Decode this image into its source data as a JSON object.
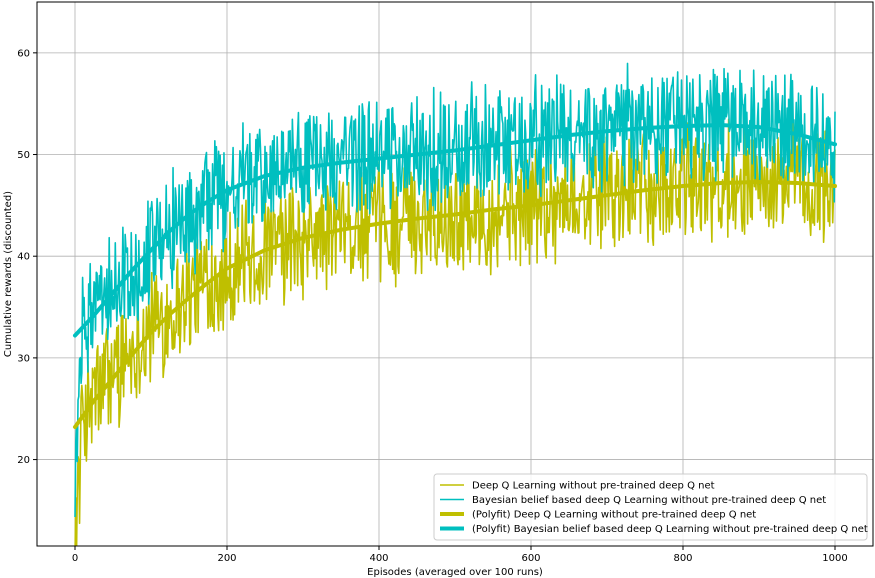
{
  "chart_data": {
    "type": "line",
    "title": "",
    "xlabel": "Episodes (averaged over 100 runs)",
    "ylabel": "Cumulative rewards (discounted)",
    "xlim": [
      -50,
      1050
    ],
    "ylim": [
      11.5,
      65
    ],
    "x_ticks": [
      0,
      200,
      400,
      600,
      800,
      1000
    ],
    "y_ticks": [
      20,
      30,
      40,
      50,
      60
    ],
    "grid": true,
    "legend_position": "lower-right",
    "series": [
      {
        "name": "Deep Q Learning without pre-trained deep Q net",
        "color": "#bfbf00",
        "style": "thin-noisy",
        "x": [
          0,
          5,
          10,
          20,
          30,
          50,
          75,
          100,
          130,
          160,
          200,
          250,
          300,
          350,
          400,
          450,
          500,
          550,
          600,
          650,
          700,
          750,
          800,
          850,
          900,
          950,
          1000
        ],
        "values": [
          14,
          18,
          24,
          25,
          27,
          29,
          31,
          33,
          35,
          37,
          39,
          40.5,
          41.5,
          42.5,
          43,
          43.5,
          44,
          44.5,
          45,
          45.5,
          46,
          46.5,
          47,
          47.2,
          47.3,
          47.1,
          46.8
        ],
        "noise_amplitude": 5
      },
      {
        "name": "Bayesian belief based deep Q Learning without pre-trained deep Q net",
        "color": "#00bfbf",
        "style": "thin-noisy",
        "x": [
          0,
          5,
          10,
          20,
          30,
          50,
          75,
          100,
          130,
          160,
          200,
          250,
          300,
          350,
          400,
          450,
          500,
          550,
          600,
          650,
          700,
          750,
          800,
          850,
          900,
          950,
          1000
        ],
        "values": [
          18,
          25,
          33,
          34,
          35,
          37,
          39,
          41,
          43,
          44.5,
          46.5,
          48,
          49,
          49.5,
          49.8,
          50.2,
          50.7,
          51.2,
          51.6,
          52,
          52.4,
          52.7,
          52.9,
          53,
          52.9,
          52.2,
          51
        ],
        "noise_amplitude": 5
      },
      {
        "name": "(Polyfit) Deep Q Learning without pre-trained deep Q net",
        "color": "#bfbf00",
        "style": "thick-smooth",
        "x": [
          0,
          25,
          50,
          75,
          100,
          125,
          150,
          175,
          200,
          250,
          300,
          350,
          400,
          450,
          500,
          550,
          600,
          650,
          700,
          750,
          800,
          850,
          900,
          950,
          1000
        ],
        "values": [
          23.2,
          25.8,
          28,
          30.3,
          32.5,
          34.3,
          35.9,
          37.4,
          38.8,
          40.6,
          41.8,
          42.6,
          43.2,
          43.7,
          44.1,
          44.6,
          45,
          45.5,
          46,
          46.5,
          46.9,
          47.2,
          47.3,
          47.2,
          46.9
        ]
      },
      {
        "name": "(Polyfit) Bayesian belief based deep Q Learning without pre-trained deep Q net",
        "color": "#00bfbf",
        "style": "thick-smooth",
        "x": [
          0,
          25,
          50,
          75,
          100,
          125,
          150,
          175,
          200,
          250,
          300,
          350,
          400,
          450,
          500,
          550,
          600,
          650,
          700,
          750,
          800,
          850,
          900,
          950,
          1000
        ],
        "values": [
          32.2,
          34.2,
          36.4,
          38.6,
          40.6,
          42.5,
          44.1,
          45.4,
          46.5,
          47.9,
          48.7,
          49.2,
          49.6,
          50,
          50.4,
          50.9,
          51.4,
          51.9,
          52.3,
          52.6,
          52.8,
          52.9,
          52.7,
          52,
          51
        ]
      }
    ]
  }
}
